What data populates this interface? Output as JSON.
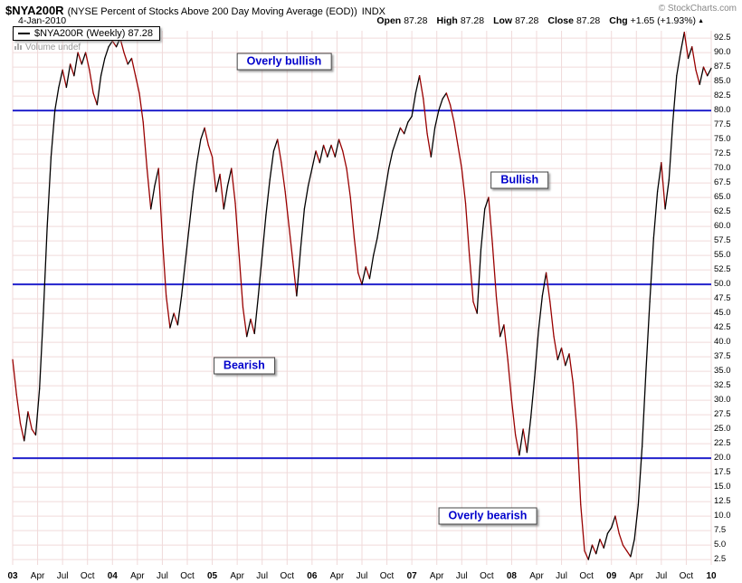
{
  "header": {
    "symbol": "$NYA200R",
    "description": "(NYSE Percent of Stocks Above 200 Day Moving Average (EOD))",
    "tag": "INDX",
    "copyright": "© StockCharts.com",
    "date": "4-Jan-2010",
    "quote": {
      "open_label": "Open",
      "open": "87.28",
      "high_label": "High",
      "high": "87.28",
      "low_label": "Low",
      "low": "87.28",
      "close_label": "Close",
      "close": "87.28",
      "chg_label": "Chg",
      "chg": "+1.65 (+1.93%)",
      "arrow": "▲"
    }
  },
  "legend": {
    "label": "$NYA200R (Weekly) 87.28",
    "volume": "Volume undef"
  },
  "chart_data": {
    "type": "line",
    "title": "$NYA200R NYSE Percent of Stocks Above 200 Day Moving Average (EOD)",
    "xlabel": "",
    "ylabel": "",
    "x_range": [
      2003,
      2010
    ],
    "ylim": [
      0,
      95
    ],
    "grid": true,
    "axis_side": "right",
    "y_ticks": [
      "92.5",
      "90.0",
      "87.5",
      "85.0",
      "82.5",
      "80.0",
      "77.5",
      "75.0",
      "72.5",
      "70.0",
      "67.5",
      "65.0",
      "62.5",
      "60.0",
      "57.5",
      "55.0",
      "52.5",
      "50.0",
      "47.5",
      "45.0",
      "42.5",
      "40.0",
      "37.5",
      "35.0",
      "32.5",
      "30.0",
      "27.5",
      "25.0",
      "22.5",
      "20.0",
      "17.5",
      "15.0",
      "12.5",
      "10.0",
      "7.5",
      "5.0",
      "2.5"
    ],
    "x_ticks": [
      {
        "pos": 2003,
        "label": "03",
        "bold": true
      },
      {
        "pos": 2003.25,
        "label": "Apr"
      },
      {
        "pos": 2003.5,
        "label": "Jul"
      },
      {
        "pos": 2003.75,
        "label": "Oct"
      },
      {
        "pos": 2004,
        "label": "04",
        "bold": true
      },
      {
        "pos": 2004.25,
        "label": "Apr"
      },
      {
        "pos": 2004.5,
        "label": "Jul"
      },
      {
        "pos": 2004.75,
        "label": "Oct"
      },
      {
        "pos": 2005,
        "label": "05",
        "bold": true
      },
      {
        "pos": 2005.25,
        "label": "Apr"
      },
      {
        "pos": 2005.5,
        "label": "Jul"
      },
      {
        "pos": 2005.75,
        "label": "Oct"
      },
      {
        "pos": 2006,
        "label": "06",
        "bold": true
      },
      {
        "pos": 2006.25,
        "label": "Apr"
      },
      {
        "pos": 2006.5,
        "label": "Jul"
      },
      {
        "pos": 2006.75,
        "label": "Oct"
      },
      {
        "pos": 2007,
        "label": "07",
        "bold": true
      },
      {
        "pos": 2007.25,
        "label": "Apr"
      },
      {
        "pos": 2007.5,
        "label": "Jul"
      },
      {
        "pos": 2007.75,
        "label": "Oct"
      },
      {
        "pos": 2008,
        "label": "08",
        "bold": true
      },
      {
        "pos": 2008.25,
        "label": "Apr"
      },
      {
        "pos": 2008.5,
        "label": "Jul"
      },
      {
        "pos": 2008.75,
        "label": "Oct"
      },
      {
        "pos": 2009,
        "label": "09",
        "bold": true
      },
      {
        "pos": 2009.25,
        "label": "Apr"
      },
      {
        "pos": 2009.5,
        "label": "Jul"
      },
      {
        "pos": 2009.75,
        "label": "Oct"
      },
      {
        "pos": 2010,
        "label": "10",
        "bold": true
      }
    ],
    "thresholds": {
      "values": [
        80,
        50,
        20
      ],
      "color": "#2222cc"
    },
    "colors": {
      "up": "#000000",
      "down": "#990000",
      "grid": "#f0dada",
      "annotation_text": "#0000cc"
    },
    "annotations": [
      {
        "text": "Overly bullish",
        "x": 2005.72,
        "y": 88.5
      },
      {
        "text": "Bullish",
        "x": 2008.08,
        "y": 68
      },
      {
        "text": "Bearish",
        "x": 2005.32,
        "y": 36
      },
      {
        "text": "Overly bearish",
        "x": 2007.76,
        "y": 10
      }
    ],
    "series": [
      {
        "name": "$NYA200R (Weekly)",
        "x_start": 2003,
        "x_step": 0.03846,
        "values": [
          37,
          31,
          26,
          23,
          28,
          25,
          24,
          32,
          45,
          60,
          72,
          80,
          84,
          87,
          84,
          88,
          86,
          90,
          88,
          90,
          87,
          83,
          81,
          86,
          89,
          91,
          92,
          91,
          92.5,
          90,
          88,
          89,
          86,
          83,
          78,
          70,
          63,
          67,
          70,
          58,
          48,
          42.5,
          45,
          43,
          48,
          54,
          60,
          66,
          71,
          75,
          77,
          74,
          72,
          66,
          69,
          63,
          67,
          70,
          64,
          55,
          46,
          41,
          44,
          41.5,
          48,
          55,
          62,
          68,
          73,
          75,
          71,
          66,
          60,
          54,
          48,
          56,
          63,
          67,
          70,
          73,
          71,
          74,
          72,
          74,
          72,
          75,
          73,
          70,
          65,
          58,
          52,
          50,
          53,
          51,
          55,
          58,
          62,
          66,
          70,
          73,
          75,
          77,
          76,
          78,
          79,
          83,
          86,
          82,
          76,
          72,
          77,
          80,
          82,
          83,
          81,
          78,
          74,
          70,
          64,
          55,
          47,
          45,
          56,
          63,
          65,
          57,
          48,
          41,
          43,
          37,
          30,
          24,
          20.5,
          25,
          21,
          27,
          34,
          42,
          48,
          52,
          47,
          41,
          37,
          39,
          36,
          38,
          33,
          25,
          12,
          4,
          2.5,
          5,
          3.5,
          6,
          4.5,
          7,
          8,
          10,
          7,
          5,
          4,
          3,
          6,
          12,
          22,
          35,
          47,
          58,
          66,
          71,
          63,
          68,
          78,
          86,
          90,
          93.5,
          89,
          91,
          87,
          84.5,
          87.5,
          86,
          87.28
        ]
      }
    ]
  }
}
